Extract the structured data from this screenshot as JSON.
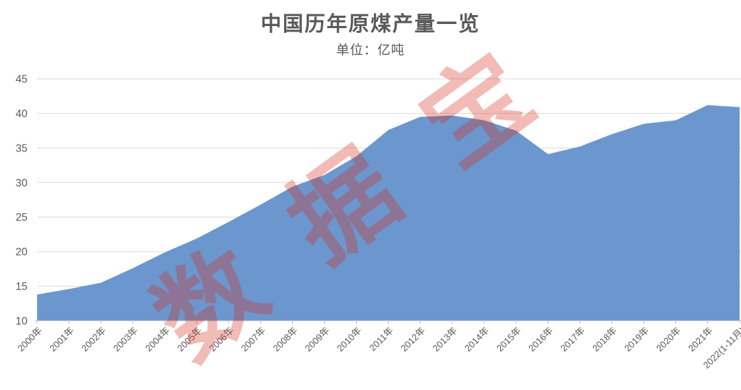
{
  "title": "中国历年原煤产量一览",
  "subtitle": "单位：亿吨",
  "watermark": {
    "text": "数据宝",
    "color": "#D62C19",
    "opacity": 0.32
  },
  "colors": {
    "area_fill": "#6B97CE",
    "gridline": "#D9D9D9",
    "axis_line": "#C6C6C6",
    "tick_mark": "#C6C6C6",
    "axis_text": "#595959",
    "title_text": "#595959"
  },
  "chart_data": {
    "type": "area",
    "title": "中国历年原煤产量一览",
    "subtitle": "单位：亿吨",
    "unit": "亿吨",
    "categories": [
      "2000年",
      "2001年",
      "2002年",
      "2003年",
      "2004年",
      "2005年",
      "2006年",
      "2007年",
      "2008年",
      "2009年",
      "2010年",
      "2011年",
      "2012年",
      "2013年",
      "2014年",
      "2015年",
      "2016年",
      "2017年",
      "2018年",
      "2019年",
      "2020年",
      "2021年",
      "2022(1-11月)"
    ],
    "values": [
      13.8,
      14.6,
      15.5,
      17.6,
      19.9,
      21.9,
      24.3,
      26.8,
      29.4,
      31.1,
      33.8,
      37.6,
      39.5,
      39.7,
      39.0,
      37.5,
      34.1,
      35.2,
      37.0,
      38.5,
      39.0,
      41.2,
      40.9
    ],
    "xlabel": "",
    "ylabel": "",
    "ylim": [
      10,
      45
    ],
    "ytick_step": 5,
    "yticks": [
      10,
      15,
      20,
      25,
      30,
      35,
      40,
      45
    ],
    "grid": true,
    "legend": false,
    "series_color": "#6B97CE",
    "x_label_rotation_deg": -45
  }
}
